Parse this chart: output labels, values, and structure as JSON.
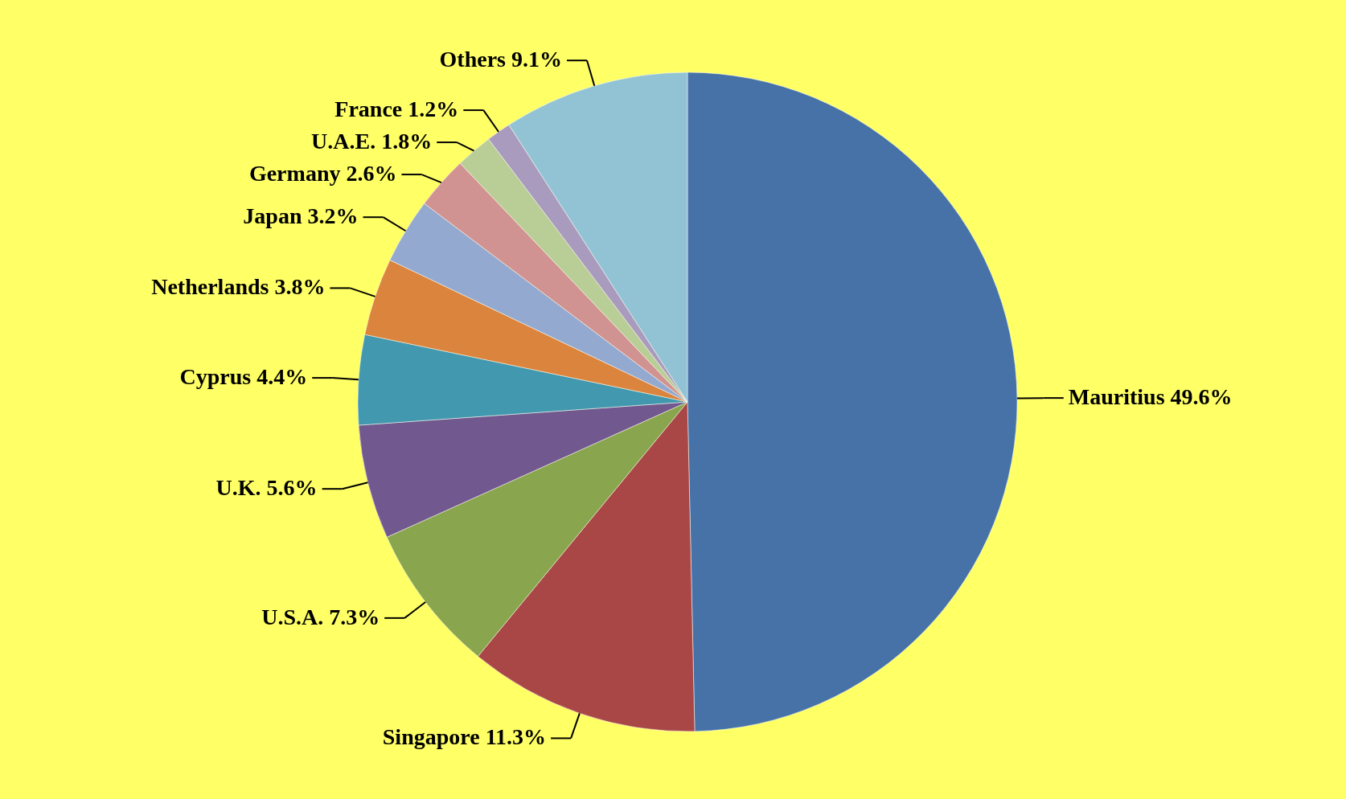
{
  "chart_data": {
    "type": "pie",
    "categories": [
      "Mauritius",
      "Singapore",
      "U.S.A.",
      "U.K.",
      "Cyprus",
      "Netherlands",
      "Japan",
      "Germany",
      "U.A.E.",
      "France",
      "Others"
    ],
    "values": [
      49.6,
      11.3,
      7.3,
      5.6,
      4.4,
      3.8,
      3.2,
      2.6,
      1.8,
      1.2,
      9.1
    ],
    "value_labels": [
      "49.6%",
      "11.3%",
      "7.3%",
      "5.6%",
      "4.4%",
      "3.8%",
      "3.2%",
      "2.6%",
      "1.8%",
      "1.2%",
      "9.1%"
    ],
    "colors": [
      "#4672a8",
      "#a94747",
      "#89a54e",
      "#71588f",
      "#4198af",
      "#db843d",
      "#93a9cf",
      "#d19392",
      "#b9cd96",
      "#a99bbd",
      "#92c3d5"
    ]
  }
}
